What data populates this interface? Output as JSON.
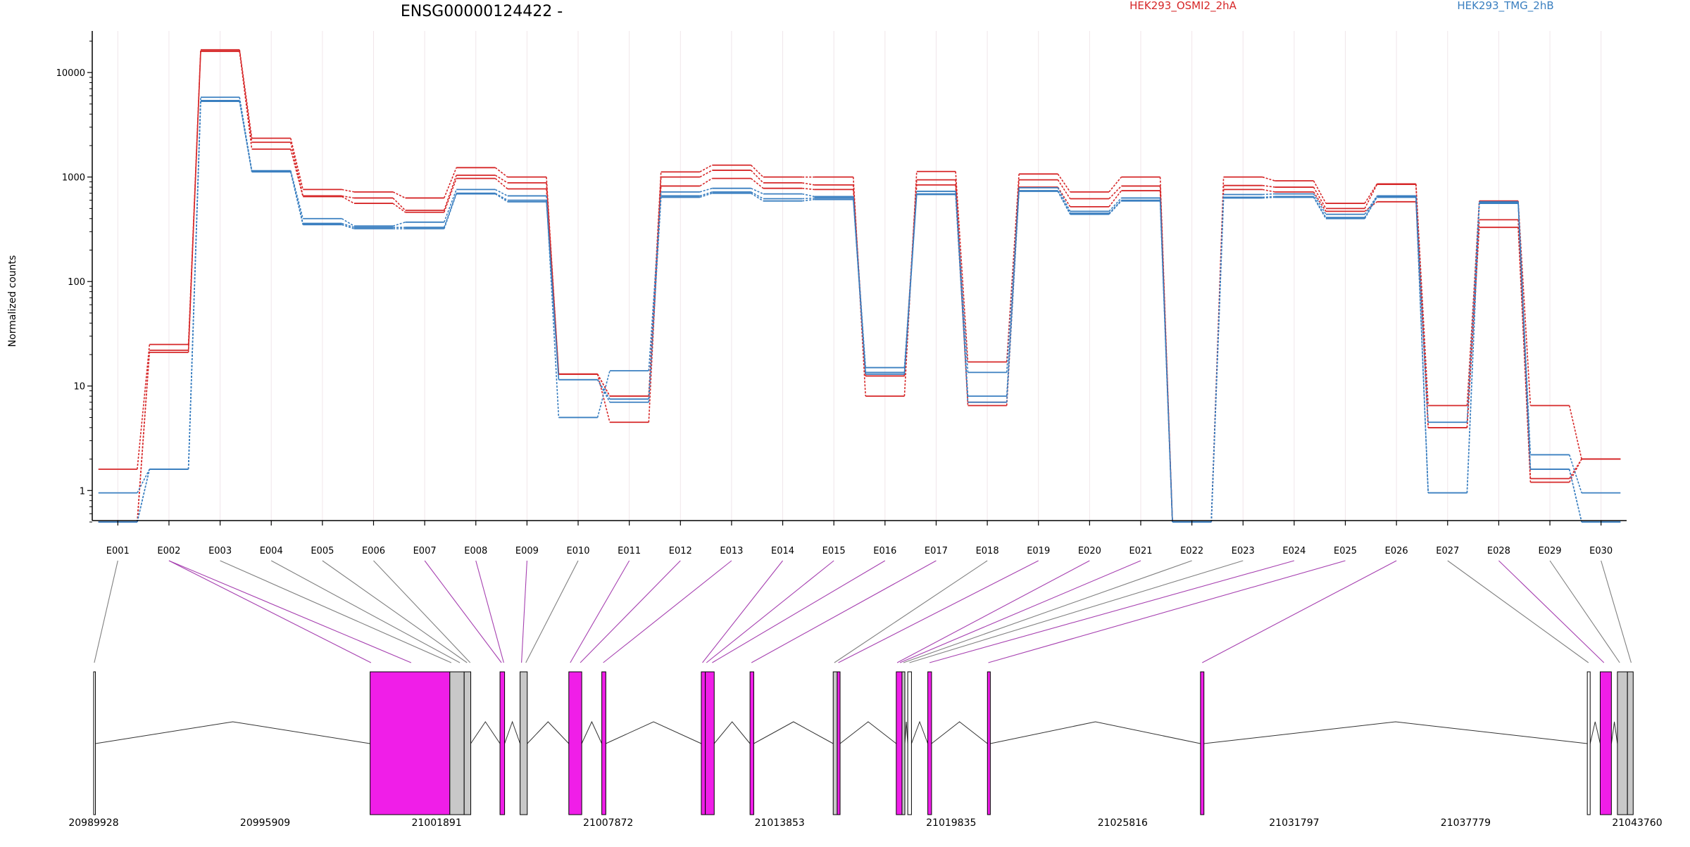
{
  "chart_data": {
    "type": "line",
    "title": "ENSG00000124422 -",
    "ylabel": "Normalized counts",
    "y_scale": "log",
    "y_ticks": [
      1,
      10,
      100,
      1000,
      10000
    ],
    "y_tick_labels": [
      "1",
      "10",
      "100",
      "1000",
      "10000"
    ],
    "ylim": [
      0.5,
      25000
    ],
    "grid": "vertical",
    "legend": {
      "placement": "top",
      "entries": [
        {
          "label": "HEK293_OSMI2_2hA",
          "color": "#d62728"
        },
        {
          "label": "HEK293_TMG_2hB",
          "color": "#3a7fc0"
        }
      ]
    },
    "exons": [
      "E001",
      "E002",
      "E003",
      "E004",
      "E005",
      "E006",
      "E007",
      "E008",
      "E009",
      "E010",
      "E011",
      "E012",
      "E013",
      "E014",
      "E015",
      "E016",
      "E017",
      "E018",
      "E019",
      "E020",
      "E021",
      "E022",
      "E023",
      "E024",
      "E025",
      "E026",
      "E027",
      "E028",
      "E029",
      "E030"
    ],
    "series": [
      {
        "group": "HEK293_OSMI2_2hA",
        "color": "#d62728",
        "values": [
          1.6,
          25,
          16500,
          2350,
          760,
          720,
          630,
          1230,
          1000,
          13,
          8,
          1120,
          1300,
          1000,
          1000,
          8,
          1130,
          17,
          1070,
          720,
          1000,
          0.5,
          1000,
          920,
          560,
          860,
          6.5,
          590,
          6.5,
          2
        ]
      },
      {
        "group": "HEK293_OSMI2_2hA",
        "color": "#d62728",
        "values": [
          0.5,
          22,
          16000,
          2150,
          660,
          630,
          480,
          1040,
          880,
          13,
          4.5,
          1000,
          1160,
          880,
          840,
          12.5,
          940,
          7,
          940,
          620,
          820,
          0.5,
          830,
          800,
          500,
          850,
          4,
          390,
          1.3,
          2
        ]
      },
      {
        "group": "HEK293_OSMI2_2hA",
        "color": "#d62728",
        "values": [
          0.5,
          21,
          16000,
          1850,
          650,
          560,
          460,
          970,
          770,
          13,
          8,
          820,
          970,
          780,
          760,
          12.5,
          840,
          6.5,
          800,
          520,
          740,
          0.5,
          760,
          720,
          470,
          580,
          4,
          330,
          1.2,
          2
        ]
      },
      {
        "group": "HEK293_TMG_2hB",
        "color": "#3a7fc0",
        "values": [
          0.95,
          1.6,
          5800,
          1150,
          400,
          340,
          370,
          760,
          660,
          5,
          14,
          720,
          780,
          690,
          650,
          15,
          730,
          13.5,
          790,
          470,
          630,
          0.5,
          680,
          690,
          440,
          660,
          4.5,
          580,
          2.2,
          0.95
        ]
      },
      {
        "group": "HEK293_TMG_2hB",
        "color": "#3a7fc0",
        "values": [
          0.5,
          1.6,
          5400,
          1130,
          360,
          330,
          330,
          700,
          600,
          11.5,
          7.5,
          660,
          720,
          620,
          630,
          13.5,
          690,
          8,
          740,
          450,
          600,
          0.5,
          640,
          650,
          410,
          650,
          0.95,
          570,
          1.6,
          0.5
        ]
      },
      {
        "group": "HEK293_TMG_2hB",
        "color": "#3a7fc0",
        "values": [
          0.5,
          1.6,
          5300,
          1120,
          350,
          320,
          320,
          690,
          580,
          11.5,
          7,
          640,
          700,
          590,
          610,
          13,
          680,
          7,
          730,
          440,
          590,
          0.5,
          630,
          640,
          400,
          640,
          0.95,
          560,
          1.6,
          0.5
        ]
      }
    ],
    "genome": {
      "coord_labels": [
        "20989928",
        "20995909",
        "21001891",
        "21007872",
        "21013853",
        "21019835",
        "21025816",
        "21031797",
        "21037779",
        "21043760"
      ],
      "range": [
        20989928,
        21043760
      ],
      "features": [
        {
          "start": 20989928,
          "end": 20989990,
          "color": "#ffffff"
        },
        {
          "start": 20999570,
          "end": 21002350,
          "color": "#f01ee8"
        },
        {
          "start": 21002350,
          "end": 21002850,
          "color": "#c8c8c8"
        },
        {
          "start": 21002850,
          "end": 21003080,
          "color": "#c8c8c8"
        },
        {
          "start": 21004100,
          "end": 21004260,
          "color": "#f01ee8"
        },
        {
          "start": 21004800,
          "end": 21005050,
          "color": "#c8c8c8"
        },
        {
          "start": 21006500,
          "end": 21006950,
          "color": "#f01ee8"
        },
        {
          "start": 21007650,
          "end": 21007790,
          "color": "#f01ee8"
        },
        {
          "start": 21011120,
          "end": 21011260,
          "color": "#f01ee8"
        },
        {
          "start": 21011260,
          "end": 21011570,
          "color": "#f01ee8"
        },
        {
          "start": 21012820,
          "end": 21012950,
          "color": "#f01ee8"
        },
        {
          "start": 21015720,
          "end": 21015860,
          "color": "#c8c8c8"
        },
        {
          "start": 21015860,
          "end": 21015960,
          "color": "#f01ee8"
        },
        {
          "start": 21017920,
          "end": 21018120,
          "color": "#f01ee8"
        },
        {
          "start": 21018120,
          "end": 21018220,
          "color": "#c8c8c8"
        },
        {
          "start": 21018320,
          "end": 21018450,
          "color": "#ffffff"
        },
        {
          "start": 21019020,
          "end": 21019150,
          "color": "#f01ee8"
        },
        {
          "start": 21021100,
          "end": 21021200,
          "color": "#f01ee8"
        },
        {
          "start": 21028530,
          "end": 21028650,
          "color": "#f01ee8"
        },
        {
          "start": 21042020,
          "end": 21042120,
          "color": "#ffffff"
        },
        {
          "start": 21042470,
          "end": 21042860,
          "color": "#f01ee8"
        },
        {
          "start": 21043070,
          "end": 21043420,
          "color": "#c8c8c8"
        },
        {
          "start": 21043420,
          "end": 21043620,
          "color": "#c8c8c8"
        }
      ]
    },
    "link_colors": {
      "coding": "#a640b0",
      "noncoding": "#808080"
    },
    "exon_links": [
      {
        "exon": "E001",
        "coords": [
          20989950
        ],
        "coding": false
      },
      {
        "exon": "E002",
        "coords": [
          20999600,
          21001000
        ],
        "coding": true
      },
      {
        "exon": "E003",
        "coords": [
          21002400
        ],
        "coding": false
      },
      {
        "exon": "E004",
        "coords": [
          21002700
        ],
        "coding": false
      },
      {
        "exon": "E005",
        "coords": [
          21002950
        ],
        "coding": false
      },
      {
        "exon": "E006",
        "coords": [
          21003060
        ],
        "coding": false
      },
      {
        "exon": "E007",
        "coords": [
          21004150
        ],
        "coding": true
      },
      {
        "exon": "E008",
        "coords": [
          21004230
        ],
        "coding": true
      },
      {
        "exon": "E009",
        "coords": [
          21004850
        ],
        "coding": true
      },
      {
        "exon": "E010",
        "coords": [
          21005000
        ],
        "coding": false
      },
      {
        "exon": "E011",
        "coords": [
          21006550
        ],
        "coding": true
      },
      {
        "exon": "E012",
        "coords": [
          21006900
        ],
        "coding": true
      },
      {
        "exon": "E013",
        "coords": [
          21007700
        ],
        "coding": true
      },
      {
        "exon": "E014",
        "coords": [
          21011160
        ],
        "coding": true
      },
      {
        "exon": "E015",
        "coords": [
          21011300
        ],
        "coding": true
      },
      {
        "exon": "E016",
        "coords": [
          21011500
        ],
        "coding": true
      },
      {
        "exon": "E017",
        "coords": [
          21012870
        ],
        "coding": true
      },
      {
        "exon": "E018",
        "coords": [
          21015760
        ],
        "coding": false
      },
      {
        "exon": "E019",
        "coords": [
          21015900
        ],
        "coding": true
      },
      {
        "exon": "E020",
        "coords": [
          21017950
        ],
        "coding": true
      },
      {
        "exon": "E021",
        "coords": [
          21018050
        ],
        "coding": true
      },
      {
        "exon": "E022",
        "coords": [
          21018170
        ],
        "coding": false
      },
      {
        "exon": "E023",
        "coords": [
          21018380
        ],
        "coding": false
      },
      {
        "exon": "E024",
        "coords": [
          21019080
        ],
        "coding": true
      },
      {
        "exon": "E025",
        "coords": [
          21021130
        ],
        "coding": true
      },
      {
        "exon": "E026",
        "coords": [
          21028590
        ],
        "coding": true
      },
      {
        "exon": "E027",
        "coords": [
          21042060
        ],
        "coding": false
      },
      {
        "exon": "E028",
        "coords": [
          21042600
        ],
        "coding": true
      },
      {
        "exon": "E029",
        "coords": [
          21043150
        ],
        "coding": false
      },
      {
        "exon": "E030",
        "coords": [
          21043550
        ],
        "coding": false
      }
    ]
  }
}
